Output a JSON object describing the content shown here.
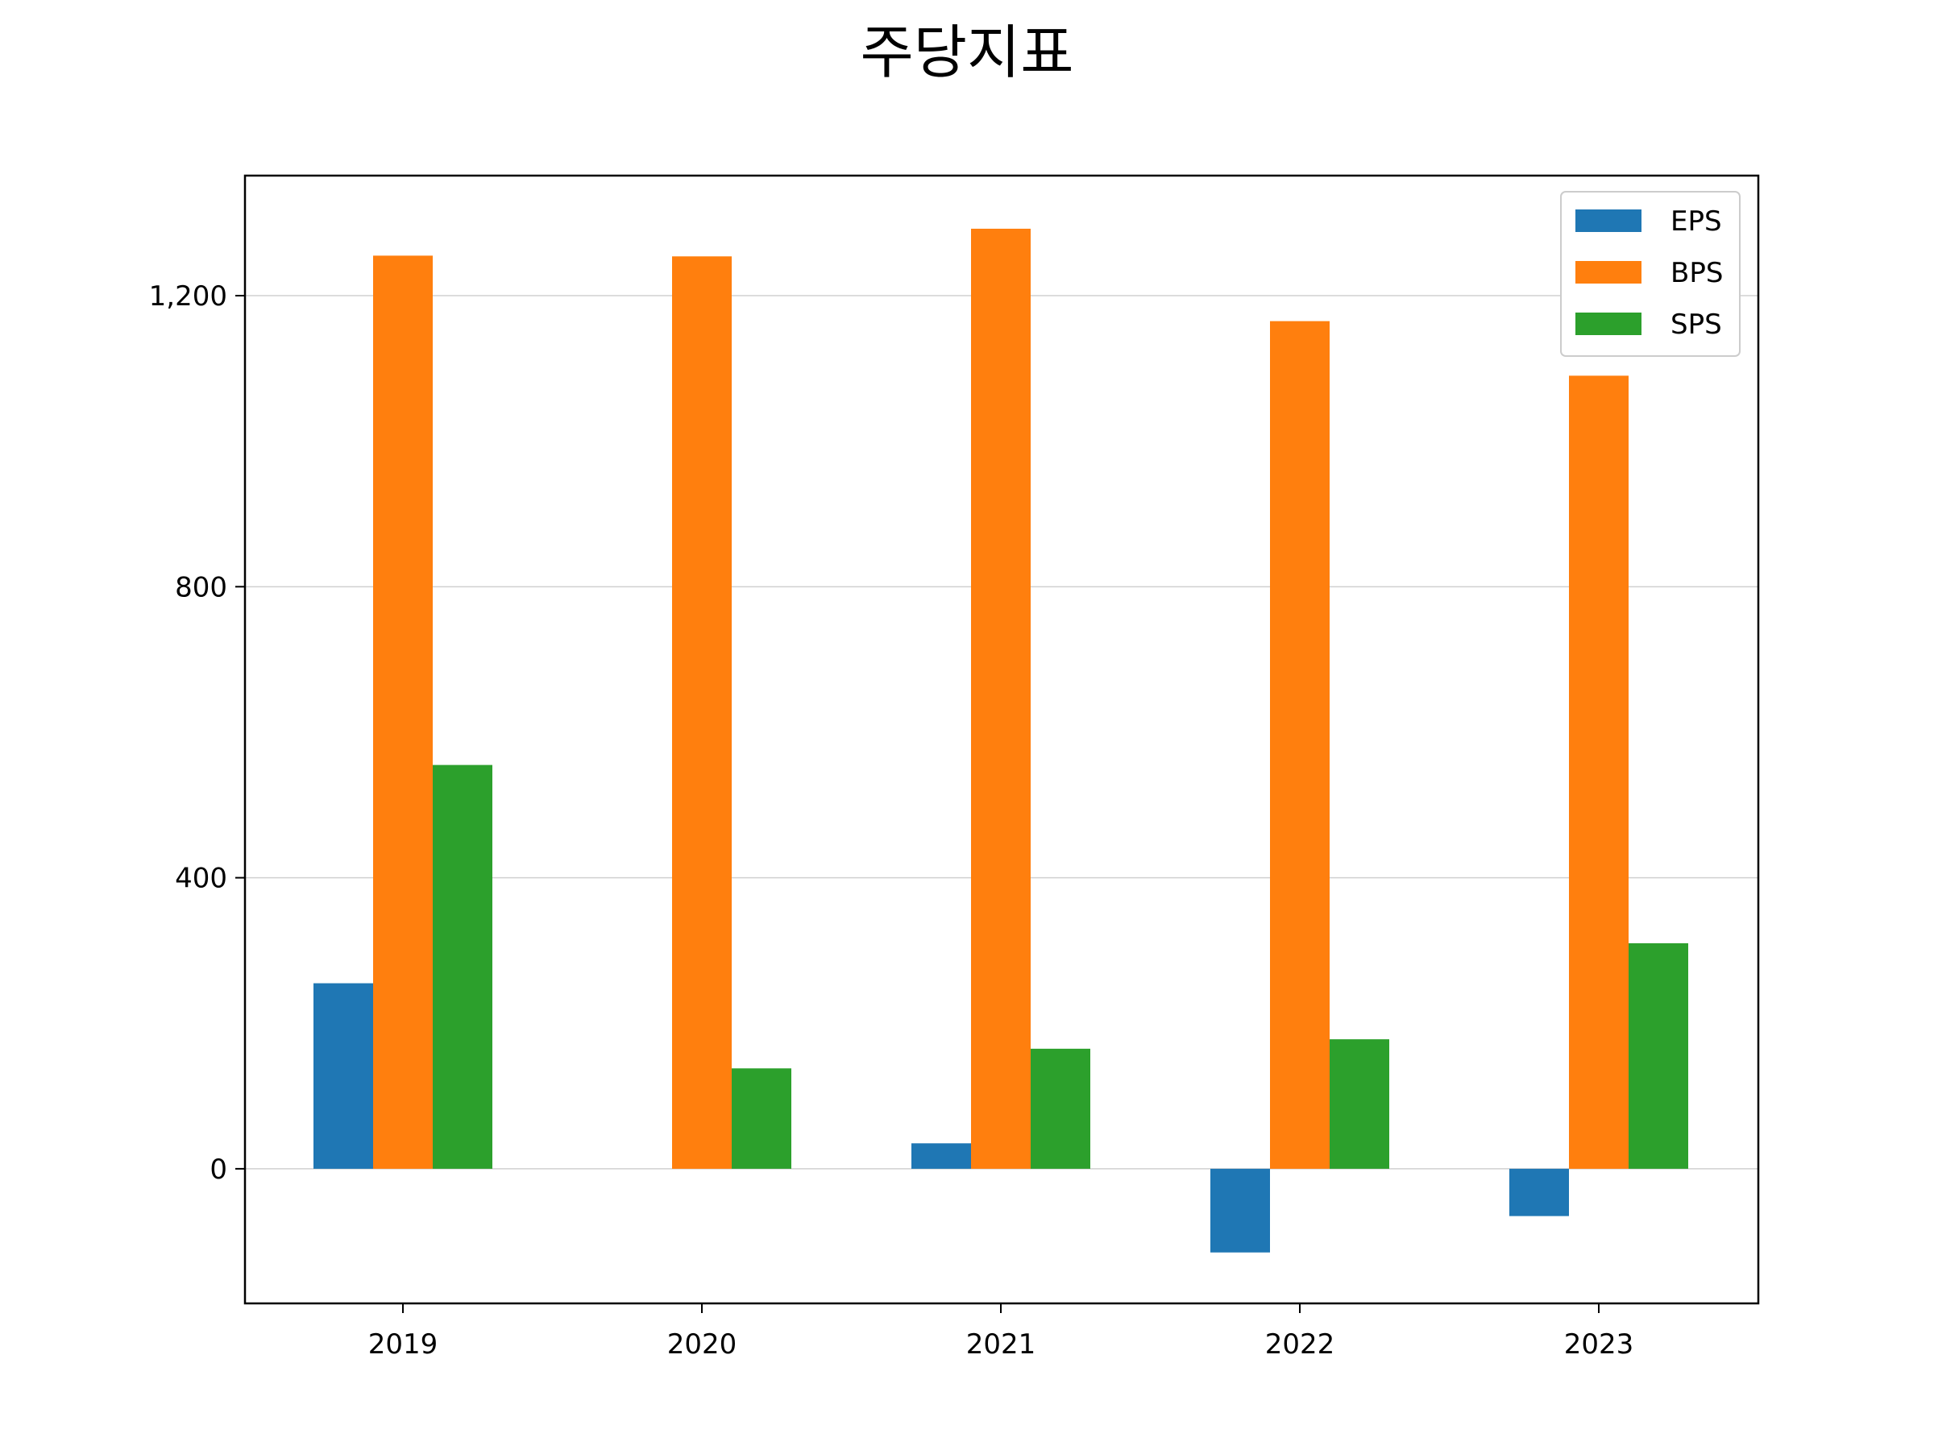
{
  "chart_data": {
    "type": "bar",
    "title": "주당지표",
    "xlabel": "",
    "ylabel": "",
    "categories": [
      "2019",
      "2020",
      "2021",
      "2022",
      "2023"
    ],
    "series": [
      {
        "name": "EPS",
        "color": "#1f77b4",
        "values": [
          255,
          0,
          35,
          -115,
          -65
        ]
      },
      {
        "name": "BPS",
        "color": "#ff7f0e",
        "values": [
          1255,
          1254,
          1292,
          1165,
          1090
        ]
      },
      {
        "name": "SPS",
        "color": "#2ca02c",
        "values": [
          555,
          138,
          165,
          178,
          310
        ]
      }
    ],
    "ylim": [
      -185,
      1365
    ],
    "yticks": [
      0,
      400,
      800,
      1200
    ],
    "ytick_labels": [
      "0",
      "400",
      "800",
      "1,200"
    ],
    "grid": "horizontal",
    "legend": "top-right"
  }
}
